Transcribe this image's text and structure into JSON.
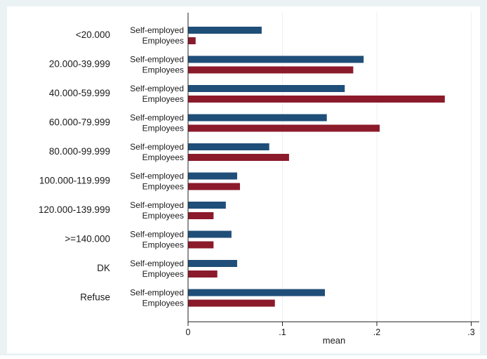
{
  "chart_data": {
    "type": "bar",
    "orientation": "horizontal",
    "categories": [
      "<20.000",
      "20.000-39.999",
      "40.000-59.999",
      "60.000-79.999",
      "80.000-99.999",
      "100.000-119.999",
      "120.000-139.999",
      ">=140.000",
      "DK",
      "Refuse"
    ],
    "series": [
      {
        "name": "Self-employed",
        "color": "#1f4e79",
        "values": [
          0.078,
          0.186,
          0.166,
          0.147,
          0.086,
          0.052,
          0.04,
          0.046,
          0.052,
          0.145
        ]
      },
      {
        "name": "Employees",
        "color": "#8b1a2b",
        "values": [
          0.008,
          0.175,
          0.272,
          0.203,
          0.107,
          0.055,
          0.027,
          0.027,
          0.031,
          0.092
        ]
      }
    ],
    "xlabel": "mean",
    "xlim": [
      0,
      0.31
    ],
    "xticks": [
      {
        "value": 0,
        "label": "0"
      },
      {
        "value": 0.1,
        "label": ".1"
      },
      {
        "value": 0.2,
        "label": ".2"
      },
      {
        "value": 0.3,
        "label": ".3"
      }
    ],
    "grid": true,
    "legend": "none",
    "colors": {
      "outer_background": "#eaf2f3",
      "plot_background": "#ffffff",
      "grid": "#eaf2f3"
    }
  }
}
